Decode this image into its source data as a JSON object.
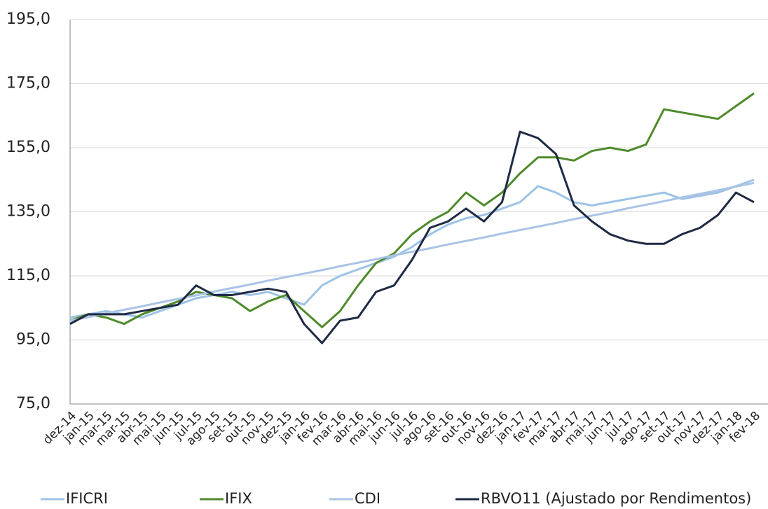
{
  "chart_data": {
    "type": "line",
    "categories": [
      "dez-14",
      "jan-15",
      "mar-15",
      "mar-15",
      "abr-15",
      "mai-15",
      "jun-15",
      "jul-15",
      "ago-15",
      "set-15",
      "out-15",
      "nov-15",
      "dez-15",
      "jan-16",
      "fev-16",
      "mar-16",
      "abr-16",
      "mai-16",
      "jun-16",
      "jul-16",
      "ago-16",
      "set-16",
      "out-16",
      "nov-16",
      "dez-16",
      "jan-17",
      "fev-17",
      "mar-17",
      "abr-17",
      "mai-17",
      "jun-17",
      "jul-17",
      "ago-17",
      "set-17",
      "out-17",
      "nov-17",
      "dez-17",
      "jan-18",
      "fev-18"
    ],
    "series": [
      {
        "name": "IFICRI",
        "color": "#9dc3e6",
        "values": [
          102,
          103,
          104,
          103,
          102,
          104,
          106,
          108,
          109,
          110,
          109,
          110,
          108,
          106,
          112,
          115,
          117,
          119,
          121,
          124,
          128,
          131,
          133,
          134,
          136,
          138,
          143,
          141,
          138,
          137,
          138,
          139,
          140,
          141,
          139,
          140,
          141,
          143,
          145
        ]
      },
      {
        "name": "IFIX",
        "color": "#4f8a2b",
        "values": [
          101,
          103,
          102,
          100,
          103,
          105,
          107,
          110,
          109,
          108,
          104,
          107,
          109,
          104,
          99,
          104,
          112,
          119,
          122,
          128,
          132,
          135,
          141,
          137,
          141,
          147,
          152,
          152,
          151,
          154,
          155,
          154,
          156,
          167,
          166,
          165,
          164,
          168,
          172
        ]
      },
      {
        "name": "CDI",
        "color": "#a9c4e6",
        "values": [
          101,
          102.1,
          103.3,
          104.4,
          105.5,
          106.7,
          107.8,
          108.9,
          110.1,
          111.2,
          112.3,
          113.5,
          114.6,
          115.7,
          116.8,
          118.0,
          119.1,
          120.2,
          121.4,
          122.5,
          123.6,
          124.8,
          125.9,
          127.0,
          128.2,
          129.3,
          130.4,
          131.5,
          132.7,
          133.8,
          134.9,
          136.1,
          137.2,
          138.3,
          139.5,
          140.6,
          141.7,
          142.9,
          144.0
        ]
      },
      {
        "name": "RBVO11 (Ajustado por Rendimentos)",
        "color": "#1f2a44",
        "values": [
          100,
          103,
          103,
          103,
          104,
          105,
          106,
          112,
          109,
          109,
          110,
          111,
          110,
          100,
          94,
          101,
          102,
          110,
          112,
          120,
          130,
          132,
          136,
          132,
          138,
          160,
          158,
          153,
          137,
          132,
          128,
          126,
          125,
          125,
          128,
          130,
          134,
          141,
          138
        ]
      }
    ],
    "ylim": [
      75,
      195
    ],
    "yticks": [
      {
        "value": 75,
        "label": "75,0"
      },
      {
        "value": 95,
        "label": "95,0"
      },
      {
        "value": 115,
        "label": "115,0"
      },
      {
        "value": 135,
        "label": "135,0"
      },
      {
        "value": 155,
        "label": "155,0"
      },
      {
        "value": 175,
        "label": "175,0"
      },
      {
        "value": 195,
        "label": "195,0"
      }
    ],
    "grid": true
  }
}
